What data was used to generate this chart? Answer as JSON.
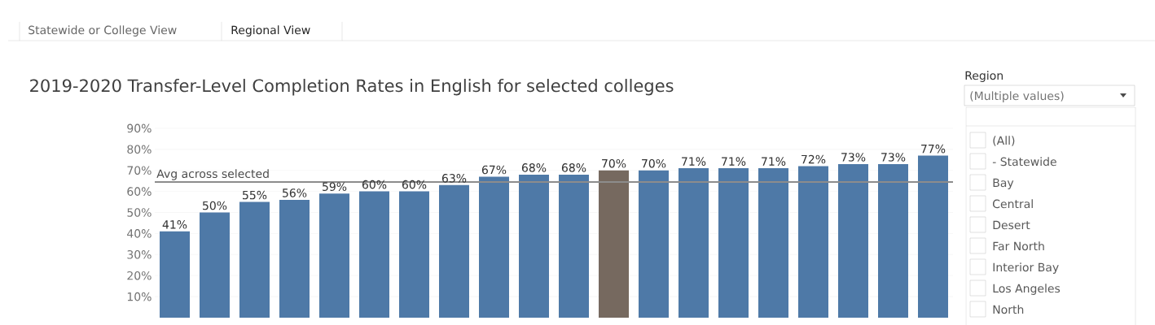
{
  "chart_data": {
    "type": "bar",
    "title": "2019-2020 Transfer-Level Completion Rates in English for selected colleges",
    "categories": [
      null,
      null,
      null,
      null,
      null,
      null,
      null,
      null,
      null,
      null,
      null,
      null,
      null,
      null,
      null,
      null,
      null,
      null,
      null,
      null
    ],
    "values": [
      41,
      50,
      55,
      56,
      59,
      60,
      60,
      63,
      67,
      68,
      68,
      70,
      70,
      71,
      71,
      71,
      72,
      73,
      73,
      77
    ],
    "value_labels": [
      "41%",
      "50%",
      "55%",
      "56%",
      "59%",
      "60%",
      "60%",
      "63%",
      "67%",
      "68%",
      "68%",
      "70%",
      "70%",
      "71%",
      "71%",
      "71%",
      "72%",
      "73%",
      "73%",
      "77%"
    ],
    "colors": [
      "#4e79a7",
      "#4e79a7",
      "#4e79a7",
      "#4e79a7",
      "#4e79a7",
      "#4e79a7",
      "#4e79a7",
      "#4e79a7",
      "#4e79a7",
      "#4e79a7",
      "#4e79a7",
      "#76695f",
      "#4e79a7",
      "#4e79a7",
      "#4e79a7",
      "#4e79a7",
      "#4e79a7",
      "#4e79a7",
      "#4e79a7",
      "#4e79a7"
    ],
    "ylim": [
      0,
      90
    ],
    "yticks": [
      {
        "value": 10,
        "label": "10%"
      },
      {
        "value": 20,
        "label": "20%"
      },
      {
        "value": 30,
        "label": "30%"
      },
      {
        "value": 40,
        "label": "40%"
      },
      {
        "value": 50,
        "label": "50%"
      },
      {
        "value": 60,
        "label": "60%"
      },
      {
        "value": 70,
        "label": "70%"
      },
      {
        "value": 80,
        "label": "80%"
      },
      {
        "value": 90,
        "label": "90%"
      }
    ],
    "grid": "y",
    "ref_lines": [
      {
        "axis": "y",
        "value": 64.5,
        "label": "Avg across selected",
        "color": "#8c8c8c"
      }
    ],
    "annotations": [
      "Statewide or College View",
      "Regional View",
      "Region",
      "(Multiple values)",
      "(All)",
      "- Statewide",
      "Bay",
      "Central",
      "Desert",
      "Far North",
      "Interior Bay",
      "Los Angeles",
      "North"
    ]
  }
}
